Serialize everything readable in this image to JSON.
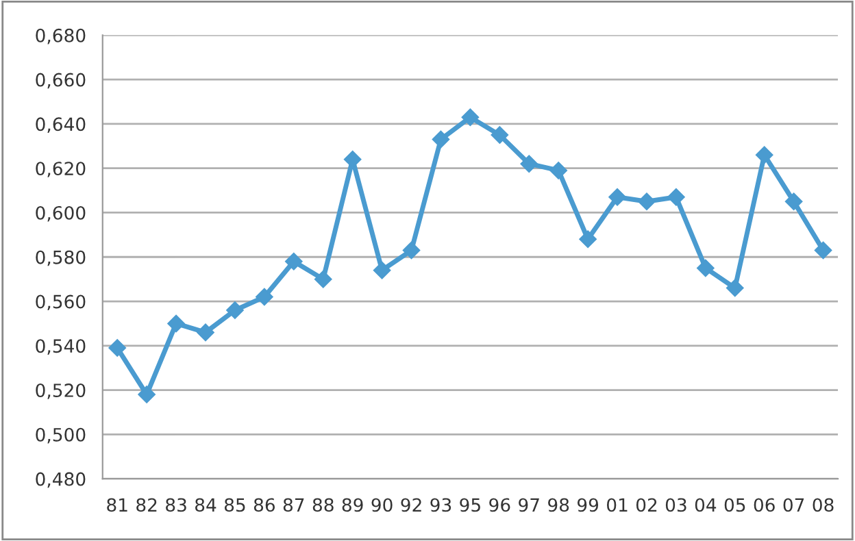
{
  "chart_data": {
    "type": "line",
    "categories": [
      "81",
      "82",
      "83",
      "84",
      "85",
      "86",
      "87",
      "88",
      "89",
      "90",
      "92",
      "93",
      "95",
      "96",
      "97",
      "98",
      "99",
      "01",
      "02",
      "03",
      "04",
      "05",
      "06",
      "07",
      "08"
    ],
    "series": [
      {
        "color": "#4a9bd0",
        "values": [
          0.539,
          0.518,
          0.55,
          0.546,
          0.556,
          0.562,
          0.578,
          0.57,
          0.624,
          0.574,
          0.583,
          0.633,
          0.643,
          0.635,
          0.622,
          0.619,
          0.588,
          0.607,
          0.605,
          0.607,
          0.575,
          0.566,
          0.626,
          0.605,
          0.583
        ]
      }
    ],
    "ylim": [
      0.48,
      0.68
    ],
    "yticks": [
      {
        "value": 0.48,
        "label": "0,480"
      },
      {
        "value": 0.5,
        "label": "0,500"
      },
      {
        "value": 0.52,
        "label": "0,520"
      },
      {
        "value": 0.54,
        "label": "0,540"
      },
      {
        "value": 0.56,
        "label": "0,560"
      },
      {
        "value": 0.58,
        "label": "0,580"
      },
      {
        "value": 0.6,
        "label": "0,600"
      },
      {
        "value": 0.62,
        "label": "0,620"
      },
      {
        "value": 0.64,
        "label": "0,640"
      },
      {
        "value": 0.66,
        "label": "0,660"
      },
      {
        "value": 0.68,
        "label": "0,680"
      }
    ],
    "grid": "y",
    "marker": "diamond",
    "line_style": "solid"
  }
}
